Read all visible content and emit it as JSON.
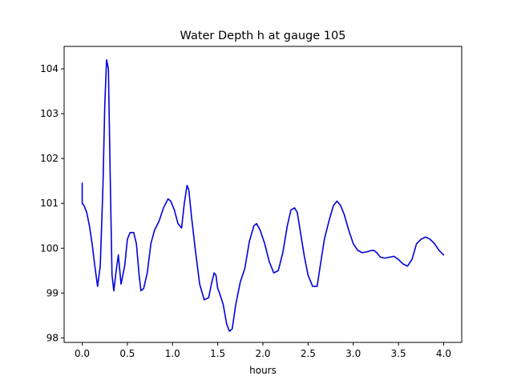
{
  "chart_data": {
    "type": "line",
    "title": "Water Depth h at gauge 105",
    "xlabel": "hours",
    "ylabel": "",
    "xlim": [
      -0.2,
      4.2
    ],
    "ylim": [
      97.9,
      104.5
    ],
    "xticks": [
      0.0,
      0.5,
      1.0,
      1.5,
      2.0,
      2.5,
      3.0,
      3.5,
      4.0
    ],
    "xtick_labels": [
      "0.0",
      "0.5",
      "1.0",
      "1.5",
      "2.0",
      "2.5",
      "3.0",
      "3.5",
      "4.0"
    ],
    "yticks": [
      98,
      99,
      100,
      101,
      102,
      103,
      104
    ],
    "ytick_labels": [
      "98",
      "99",
      "100",
      "101",
      "102",
      "103",
      "104"
    ],
    "grid": false,
    "line_color": "#0000dd",
    "series": [
      {
        "x": [
          0.0,
          0.0,
          0.02,
          0.05,
          0.08,
          0.11,
          0.14,
          0.17,
          0.2,
          0.23,
          0.25,
          0.27,
          0.29,
          0.31,
          0.33,
          0.35,
          0.37,
          0.4,
          0.43,
          0.47,
          0.5,
          0.53,
          0.57,
          0.6,
          0.63,
          0.65,
          0.68,
          0.72,
          0.76,
          0.8,
          0.85,
          0.9,
          0.95,
          0.98,
          1.02,
          1.06,
          1.1,
          1.13,
          1.16,
          1.18,
          1.21,
          1.25,
          1.3,
          1.35,
          1.4,
          1.43,
          1.46,
          1.48,
          1.5,
          1.52,
          1.56,
          1.6,
          1.63,
          1.66,
          1.7,
          1.75,
          1.8,
          1.85,
          1.9,
          1.93,
          1.97,
          2.02,
          2.07,
          2.12,
          2.17,
          2.22,
          2.27,
          2.31,
          2.35,
          2.38,
          2.42,
          2.46,
          2.5,
          2.55,
          2.6,
          2.63,
          2.68,
          2.73,
          2.78,
          2.82,
          2.86,
          2.9,
          2.95,
          3.0,
          3.05,
          3.1,
          3.15,
          3.2,
          3.23,
          3.26,
          3.3,
          3.35,
          3.4,
          3.45,
          3.5,
          3.55,
          3.6,
          3.65,
          3.7,
          3.75,
          3.8,
          3.85,
          3.9,
          3.95,
          4.0
        ],
        "values": [
          101.45,
          101.0,
          100.95,
          100.8,
          100.5,
          100.1,
          99.6,
          99.15,
          99.6,
          101.4,
          103.2,
          104.2,
          104.0,
          101.6,
          99.4,
          99.05,
          99.4,
          99.85,
          99.2,
          99.6,
          100.2,
          100.35,
          100.35,
          100.1,
          99.4,
          99.05,
          99.1,
          99.45,
          100.1,
          100.4,
          100.6,
          100.9,
          101.1,
          101.05,
          100.85,
          100.55,
          100.45,
          101.0,
          101.4,
          101.3,
          100.7,
          100.0,
          99.2,
          98.85,
          98.9,
          99.2,
          99.45,
          99.4,
          99.1,
          99.0,
          98.75,
          98.3,
          98.15,
          98.2,
          98.75,
          99.25,
          99.55,
          100.15,
          100.5,
          100.55,
          100.4,
          100.1,
          99.7,
          99.45,
          99.5,
          99.9,
          100.5,
          100.85,
          100.9,
          100.8,
          100.3,
          99.8,
          99.4,
          99.15,
          99.15,
          99.55,
          100.2,
          100.6,
          100.95,
          101.05,
          100.95,
          100.75,
          100.4,
          100.1,
          99.95,
          99.9,
          99.92,
          99.95,
          99.95,
          99.9,
          99.8,
          99.78,
          99.8,
          99.82,
          99.75,
          99.65,
          99.6,
          99.75,
          100.1,
          100.2,
          100.25,
          100.2,
          100.1,
          99.95,
          99.85
        ]
      }
    ]
  }
}
